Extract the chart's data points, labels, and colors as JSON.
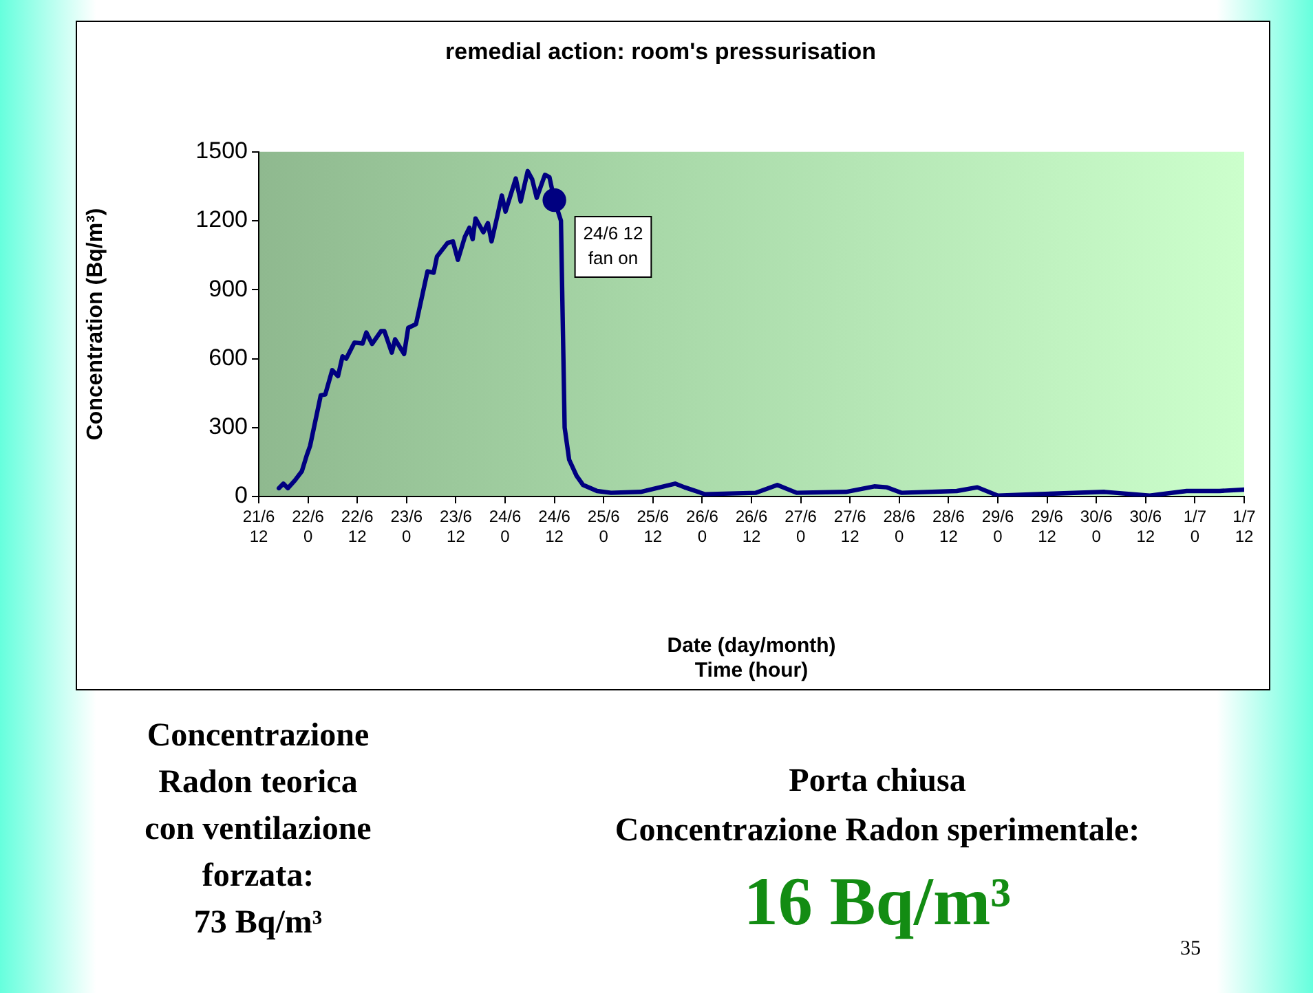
{
  "chart_data": {
    "type": "line",
    "title": "remedial action: room's pressurisation",
    "xlabel": "Date (day/month)\nTime (hour)",
    "ylabel": "Concentration (Bq/m³)",
    "xlim": [
      "--06-21T12:00",
      "--07-01T12:00"
    ],
    "xticks": [
      {
        "value": "--06-21T12:00",
        "label": "21/6\n12"
      },
      {
        "value": "--06-22T00:00",
        "label": "22/6\n0"
      },
      {
        "value": "--06-22T12:00",
        "label": "22/6\n12"
      },
      {
        "value": "--06-23T00:00",
        "label": "23/6\n0"
      },
      {
        "value": "--06-23T12:00",
        "label": "23/6\n12"
      },
      {
        "value": "--06-24T00:00",
        "label": "24/6\n0"
      },
      {
        "value": "--06-24T12:00",
        "label": "24/6\n12"
      },
      {
        "value": "--06-25T00:00",
        "label": "25/6\n0"
      },
      {
        "value": "--06-25T12:00",
        "label": "25/6\n12"
      },
      {
        "value": "--06-26T00:00",
        "label": "26/6\n0"
      },
      {
        "value": "--06-26T12:00",
        "label": "26/6\n12"
      },
      {
        "value": "--06-27T00:00",
        "label": "27/6\n0"
      },
      {
        "value": "--06-27T12:00",
        "label": "27/6\n12"
      },
      {
        "value": "--06-28T00:00",
        "label": "28/6\n0"
      },
      {
        "value": "--06-28T12:00",
        "label": "28/6\n12"
      },
      {
        "value": "--06-29T00:00",
        "label": "29/6\n0"
      },
      {
        "value": "--06-29T12:00",
        "label": "29/6\n12"
      },
      {
        "value": "--06-30T00:00",
        "label": "30/6\n0"
      },
      {
        "value": "--06-30T12:00",
        "label": "30/6\n12"
      },
      {
        "value": "--07-01T00:00",
        "label": "1/7\n0"
      },
      {
        "value": "--07-01T12:00",
        "label": "1/7\n12"
      }
    ],
    "ylim": [
      0,
      1500
    ],
    "yticks": [
      0,
      300,
      600,
      900,
      1200,
      1500
    ],
    "grid": false,
    "legend": false,
    "marker": "none",
    "line_style": "solid",
    "series": [
      {
        "color": "#000080",
        "x": [
          "--06-21T16:54",
          "--06-21T18:00",
          "--06-21T19:06",
          "--06-21T20:48",
          "--06-21T22:30",
          "--06-21T23:42",
          "--06-22T00:30",
          "--06-22T03:06",
          "--06-22T04:12",
          "--06-22T05:54",
          "--06-22T07:18",
          "--06-22T08:24",
          "--06-22T09:18",
          "--06-22T11:18",
          "--06-22T13:18",
          "--06-22T14:12",
          "--06-22T15:36",
          "--06-22T17:48",
          "--06-22T18:36",
          "--06-22T20:24",
          "--06-22T21:12",
          "--06-22T23:24",
          "--06-23T00:24",
          "--06-23T02:18",
          "--06-23T05:06",
          "--06-23T06:36",
          "--06-23T07:24",
          "--06-23T10:00",
          "--06-23T11:18",
          "--06-23T12:30",
          "--06-23T14:12",
          "--06-23T15:18",
          "--06-23T16:06",
          "--06-23T16:48",
          "--06-23T18:42",
          "--06-23T19:48",
          "--06-23T20:42",
          "--06-23T22:06",
          "--06-23T23:12",
          "--06-24T00:06",
          "--06-24T02:36",
          "--06-24T03:48",
          "--06-24T05:30",
          "--06-24T06:36",
          "--06-24T07:42",
          "--06-24T09:42",
          "--06-24T10:48",
          "--06-24T12:00",
          "--06-24T13:36",
          "--06-24T14:30",
          "--06-24T15:36",
          "--06-24T17:24",
          "--06-24T19:00",
          "--06-24T22:24",
          "--06-25T01:48",
          "--06-25T09:00",
          "--06-25T14:36",
          "--06-25T17:24",
          "--06-25T19:42",
          "--06-26T00:42",
          "--06-26T13:00",
          "--06-26T18:18",
          "--06-26T23:00",
          "--06-27T11:00",
          "--06-27T17:54",
          "--06-27T21:00",
          "--06-28T00:36",
          "--06-28T14:00",
          "--06-28T19:00",
          "--06-29T00:00",
          "--06-29T09:00",
          "--06-30T02:00",
          "--06-30T13:00",
          "--06-30T22:00",
          "--07-01T06:00",
          "--07-01T12:00"
        ],
        "values": [
          36,
          56,
          36,
          70,
          110,
          180,
          220,
          440,
          444,
          550,
          524,
          610,
          600,
          670,
          666,
          714,
          664,
          720,
          720,
          626,
          684,
          620,
          734,
          750,
          980,
          974,
          1044,
          1104,
          1110,
          1030,
          1130,
          1170,
          1120,
          1210,
          1150,
          1190,
          1110,
          1220,
          1310,
          1240,
          1384,
          1284,
          1416,
          1380,
          1300,
          1400,
          1390,
          1290,
          1200,
          300,
          160,
          90,
          50,
          24,
          16,
          20,
          44,
          56,
          40,
          10,
          16,
          50,
          16,
          20,
          44,
          40,
          16,
          24,
          40,
          4,
          10,
          20,
          4,
          24,
          24,
          30
        ]
      },
      {
        "type": "scatter",
        "marker": "circle",
        "color": "#000080",
        "x": [
          "--06-24T12:00"
        ],
        "values": [
          1290
        ]
      }
    ],
    "annotations": [
      {
        "text": "24/6 12\nfan on",
        "x": "--06-24T12:00",
        "y": 1290
      },
      "Concentrazione\nRadon teorica\ncon ventilazione\nforzata:\n73 Bq/m³",
      "Porta chiusa\nConcentrazione Radon sperimentale:",
      "16 Bq/m³",
      "35"
    ]
  }
}
